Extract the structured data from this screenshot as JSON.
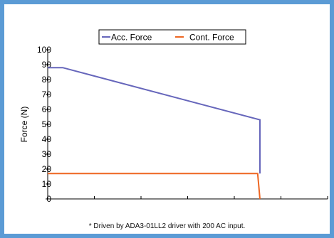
{
  "chart_data": {
    "type": "line",
    "ylabel": "Force (N)",
    "ylim": [
      0,
      100
    ],
    "yticks": [
      "0",
      "10",
      "20",
      "30",
      "40",
      "50",
      "60",
      "70",
      "80",
      "90",
      "100"
    ],
    "x_ticks_count": 6,
    "grid": false,
    "legend_position": "top-center",
    "series": [
      {
        "name": "Acc. Force",
        "color": "#6666bb",
        "points": [
          [
            0,
            88
          ],
          [
            0.32,
            88
          ],
          [
            4.55,
            53
          ],
          [
            4.55,
            17
          ]
        ]
      },
      {
        "name": "Cont. Force",
        "color": "#ee6622",
        "points": [
          [
            0,
            17
          ],
          [
            4.5,
            17
          ],
          [
            4.55,
            0
          ]
        ]
      }
    ],
    "xlim": [
      0,
      6
    ],
    "footnote": "* Driven by ADA3-01LL2 driver with 200 AC input."
  },
  "colors": {
    "border": "#5b9bd5",
    "acc": "#6666bb",
    "cont": "#ee6622"
  }
}
